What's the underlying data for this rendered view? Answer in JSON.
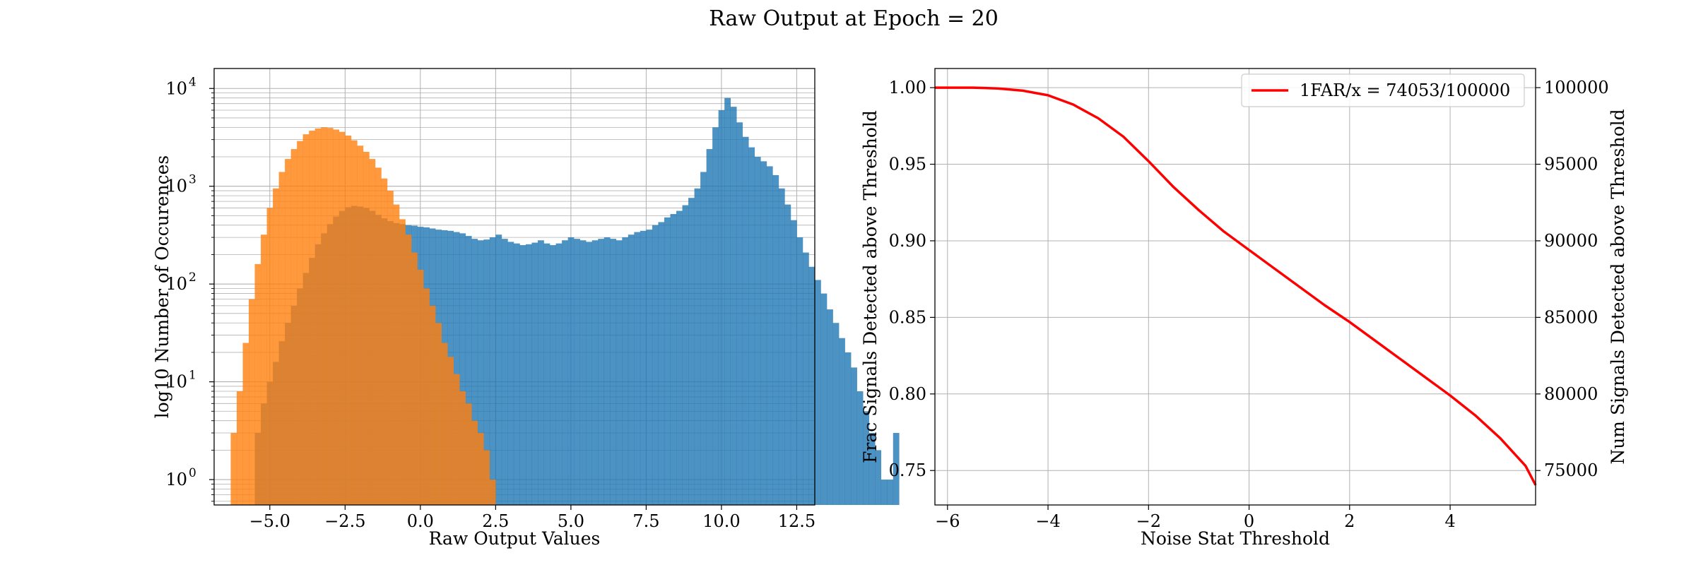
{
  "figure": {
    "title": "Raw Output at Epoch = 20"
  },
  "chart_data": [
    {
      "type": "bar",
      "subtype": "histogram",
      "xlabel": "Raw Output Values",
      "ylabel": "log10 Number of Occurences",
      "yscale": "log",
      "xlim": [
        -6.85,
        13.1
      ],
      "ylim": [
        0.55,
        16000
      ],
      "grid": true,
      "x_ticks": [
        -5.0,
        -2.5,
        0.0,
        2.5,
        5.0,
        7.5,
        10.0,
        12.5
      ],
      "x_tick_labels": [
        "−5.0",
        "−2.5",
        "0.0",
        "2.5",
        "5.0",
        "7.5",
        "10.0",
        "12.5"
      ],
      "y_ticks": [
        1,
        10,
        100,
        1000,
        10000
      ],
      "y_tick_labels": [
        [
          "10",
          "0"
        ],
        [
          "10",
          "1"
        ],
        [
          "10",
          "2"
        ],
        [
          "10",
          "3"
        ],
        [
          "10",
          "4"
        ]
      ],
      "series": [
        {
          "color": "#1f77b4",
          "opacity": 0.8,
          "bin_start": -5.5,
          "bin_width": 0.2,
          "counts": [
            3,
            6,
            10,
            16,
            26,
            40,
            60,
            90,
            130,
            185,
            255,
            330,
            410,
            490,
            560,
            610,
            630,
            620,
            600,
            560,
            510,
            470,
            440,
            420,
            410,
            400,
            395,
            385,
            380,
            370,
            360,
            355,
            350,
            340,
            330,
            310,
            290,
            280,
            285,
            300,
            320,
            290,
            270,
            260,
            250,
            255,
            265,
            280,
            260,
            250,
            260,
            280,
            300,
            290,
            280,
            270,
            280,
            290,
            300,
            290,
            280,
            300,
            320,
            340,
            350,
            360,
            400,
            430,
            480,
            520,
            560,
            640,
            760,
            950,
            1400,
            2400,
            4000,
            6000,
            8000,
            6500,
            4500,
            3200,
            2500,
            2000,
            1800,
            1600,
            1300,
            950,
            650,
            450,
            300,
            210,
            150,
            110,
            80,
            55,
            40,
            28,
            20,
            14,
            8,
            5,
            3,
            2,
            1,
            1,
            3
          ]
        },
        {
          "color": "#ff7f0e",
          "opacity": 0.8,
          "bin_start": -6.3,
          "bin_width": 0.2,
          "counts": [
            3,
            8,
            25,
            70,
            160,
            320,
            600,
            950,
            1400,
            1900,
            2400,
            2900,
            3400,
            3700,
            3900,
            4000,
            3950,
            3800,
            3600,
            3300,
            2950,
            2600,
            2250,
            1900,
            1550,
            1200,
            900,
            650,
            460,
            320,
            210,
            140,
            90,
            60,
            40,
            25,
            18,
            12,
            8,
            6,
            4,
            3,
            2,
            1
          ]
        }
      ]
    },
    {
      "type": "line",
      "xlabel": "Noise Stat Threshold",
      "ylabel": "Frac Signals Detected above Threshold",
      "ylabel_right": "Num Signals Detected above Threshold",
      "xlim": [
        -6.25,
        5.7
      ],
      "ylim": [
        0.7275,
        1.0125
      ],
      "ylim_right": [
        72750,
        101250
      ],
      "grid": true,
      "x_ticks": [
        -6,
        -4,
        -2,
        0,
        2,
        4
      ],
      "x_tick_labels": [
        "−6",
        "−4",
        "−2",
        "0",
        "2",
        "4"
      ],
      "y_ticks": [
        0.75,
        0.8,
        0.85,
        0.9,
        0.95,
        1.0
      ],
      "y_tick_labels": [
        "0.75",
        "0.80",
        "0.85",
        "0.90",
        "0.95",
        "1.00"
      ],
      "y_ticks_right": [
        75000,
        80000,
        85000,
        90000,
        95000,
        100000
      ],
      "y_tick_labels_right": [
        "75000",
        "80000",
        "85000",
        "90000",
        "95000",
        "100000"
      ],
      "legend_position": "top-right",
      "series": [
        {
          "name": "1FAR/x = 74053/100000",
          "color": "#ff0000",
          "x": [
            -6.25,
            -5.5,
            -5.0,
            -4.5,
            -4.0,
            -3.5,
            -3.0,
            -2.5,
            -2.0,
            -1.5,
            -1.0,
            -0.5,
            0.0,
            0.5,
            1.0,
            1.5,
            2.0,
            2.5,
            3.0,
            3.5,
            4.0,
            4.5,
            5.0,
            5.5,
            5.7
          ],
          "y": [
            1.0,
            1.0,
            0.9995,
            0.998,
            0.995,
            0.989,
            0.98,
            0.968,
            0.952,
            0.935,
            0.92,
            0.906,
            0.894,
            0.882,
            0.87,
            0.858,
            0.847,
            0.835,
            0.823,
            0.811,
            0.799,
            0.786,
            0.771,
            0.753,
            0.7405
          ]
        }
      ]
    }
  ]
}
